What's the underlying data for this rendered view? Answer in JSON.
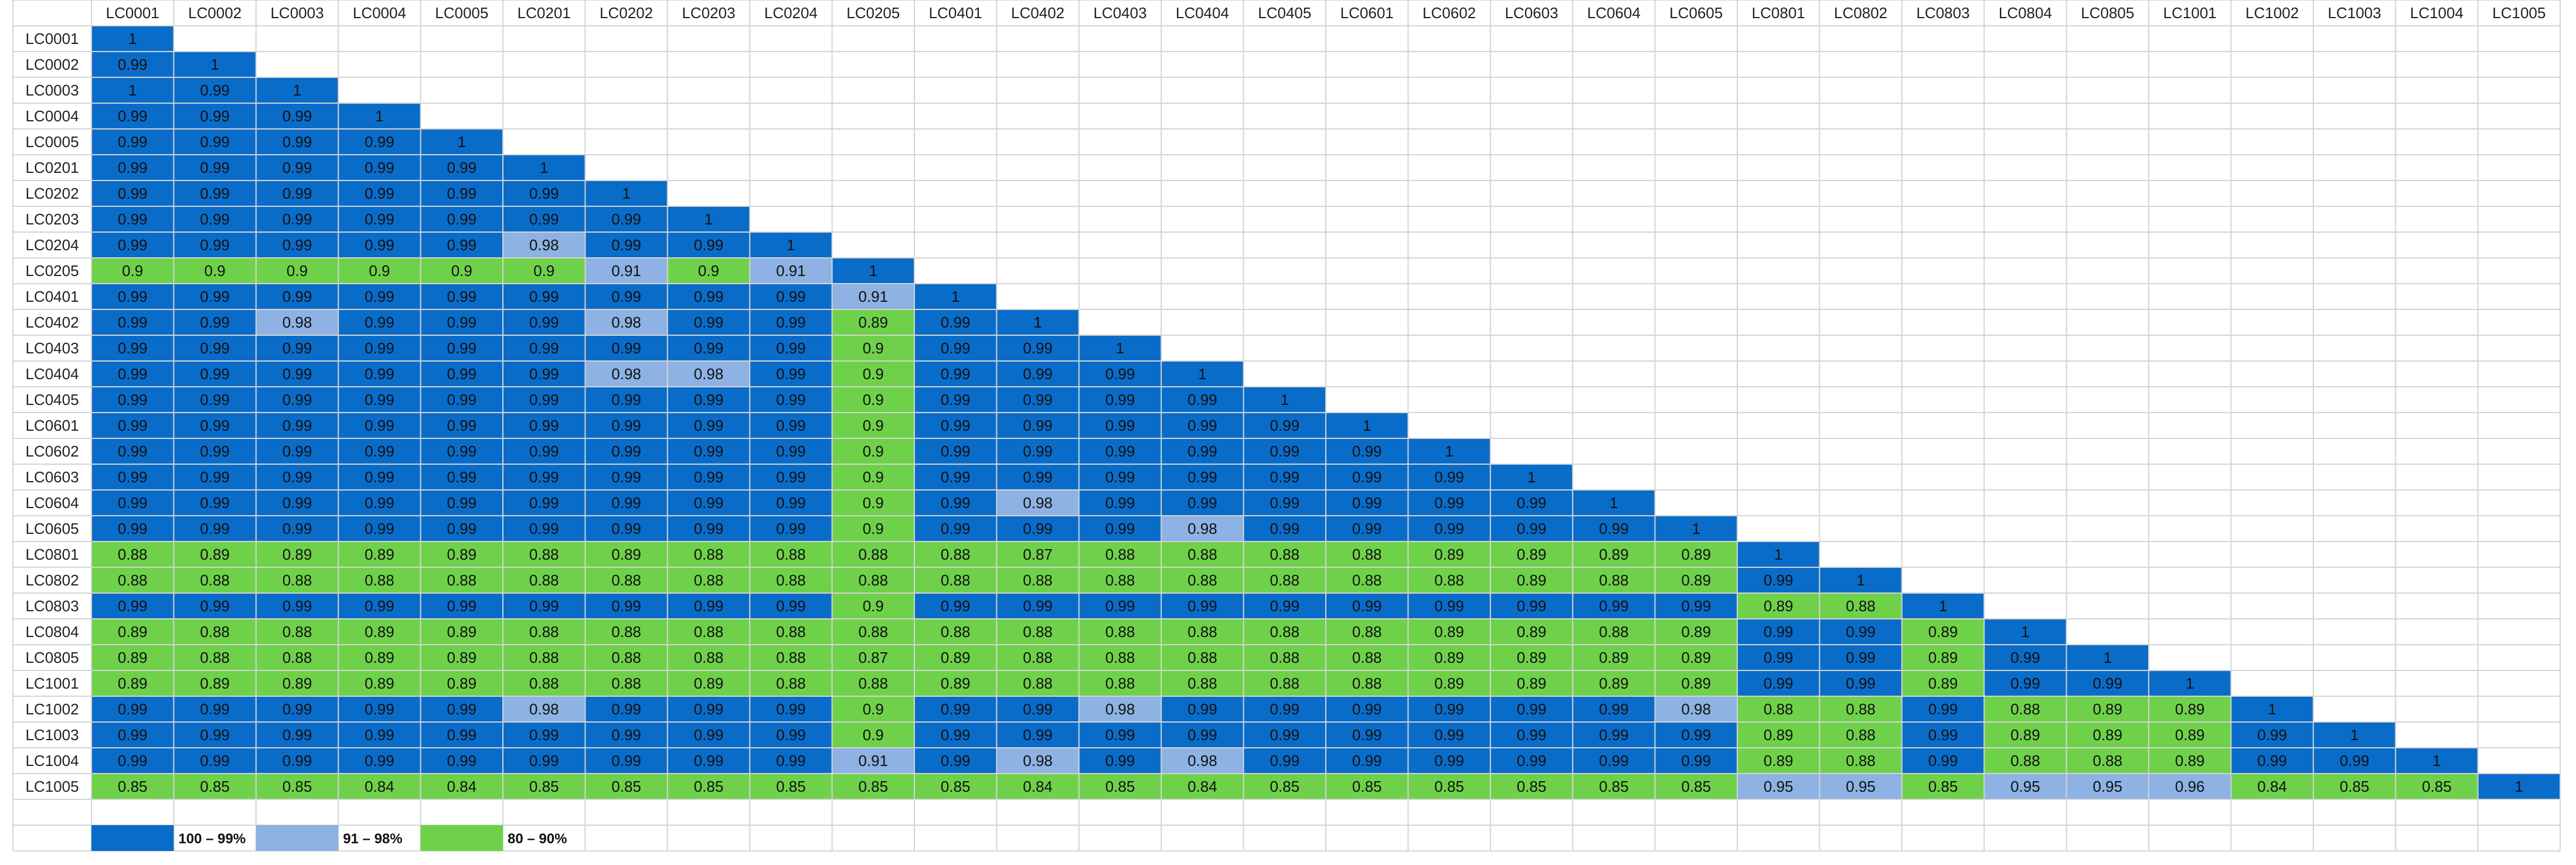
{
  "chart_data": {
    "type": "heatmap",
    "title": "",
    "labels": [
      "LC0001",
      "LC0002",
      "LC0003",
      "LC0004",
      "LC0005",
      "LC0201",
      "LC0202",
      "LC0203",
      "LC0204",
      "LC0205",
      "LC0401",
      "LC0402",
      "LC0403",
      "LC0404",
      "LC0405",
      "LC0601",
      "LC0602",
      "LC0603",
      "LC0604",
      "LC0605",
      "LC0801",
      "LC0802",
      "LC0803",
      "LC0804",
      "LC0805",
      "LC1001",
      "LC1002",
      "LC1003",
      "LC1004",
      "LC1005"
    ],
    "matrix": [
      [
        "1"
      ],
      [
        "0.99",
        "1"
      ],
      [
        "1",
        "0.99",
        "1"
      ],
      [
        "0.99",
        "0.99",
        "0.99",
        "1"
      ],
      [
        "0.99",
        "0.99",
        "0.99",
        "0.99",
        "1"
      ],
      [
        "0.99",
        "0.99",
        "0.99",
        "0.99",
        "0.99",
        "1"
      ],
      [
        "0.99",
        "0.99",
        "0.99",
        "0.99",
        "0.99",
        "0.99",
        "1"
      ],
      [
        "0.99",
        "0.99",
        "0.99",
        "0.99",
        "0.99",
        "0.99",
        "0.99",
        "1"
      ],
      [
        "0.99",
        "0.99",
        "0.99",
        "0.99",
        "0.99",
        "0.98",
        "0.99",
        "0.99",
        "1"
      ],
      [
        "0.9",
        "0.9",
        "0.9",
        "0.9",
        "0.9",
        "0.9",
        "0.91",
        "0.9",
        "0.91",
        "1"
      ],
      [
        "0.99",
        "0.99",
        "0.99",
        "0.99",
        "0.99",
        "0.99",
        "0.99",
        "0.99",
        "0.99",
        "0.91",
        "1"
      ],
      [
        "0.99",
        "0.99",
        "0.98",
        "0.99",
        "0.99",
        "0.99",
        "0.98",
        "0.99",
        "0.99",
        "0.89",
        "0.99",
        "1"
      ],
      [
        "0.99",
        "0.99",
        "0.99",
        "0.99",
        "0.99",
        "0.99",
        "0.99",
        "0.99",
        "0.99",
        "0.9",
        "0.99",
        "0.99",
        "1"
      ],
      [
        "0.99",
        "0.99",
        "0.99",
        "0.99",
        "0.99",
        "0.99",
        "0.98",
        "0.98",
        "0.99",
        "0.9",
        "0.99",
        "0.99",
        "0.99",
        "1"
      ],
      [
        "0.99",
        "0.99",
        "0.99",
        "0.99",
        "0.99",
        "0.99",
        "0.99",
        "0.99",
        "0.99",
        "0.9",
        "0.99",
        "0.99",
        "0.99",
        "0.99",
        "1"
      ],
      [
        "0.99",
        "0.99",
        "0.99",
        "0.99",
        "0.99",
        "0.99",
        "0.99",
        "0.99",
        "0.99",
        "0.9",
        "0.99",
        "0.99",
        "0.99",
        "0.99",
        "0.99",
        "1"
      ],
      [
        "0.99",
        "0.99",
        "0.99",
        "0.99",
        "0.99",
        "0.99",
        "0.99",
        "0.99",
        "0.99",
        "0.9",
        "0.99",
        "0.99",
        "0.99",
        "0.99",
        "0.99",
        "0.99",
        "1"
      ],
      [
        "0.99",
        "0.99",
        "0.99",
        "0.99",
        "0.99",
        "0.99",
        "0.99",
        "0.99",
        "0.99",
        "0.9",
        "0.99",
        "0.99",
        "0.99",
        "0.99",
        "0.99",
        "0.99",
        "0.99",
        "1"
      ],
      [
        "0.99",
        "0.99",
        "0.99",
        "0.99",
        "0.99",
        "0.99",
        "0.99",
        "0.99",
        "0.99",
        "0.9",
        "0.99",
        "0.98",
        "0.99",
        "0.99",
        "0.99",
        "0.99",
        "0.99",
        "0.99",
        "1"
      ],
      [
        "0.99",
        "0.99",
        "0.99",
        "0.99",
        "0.99",
        "0.99",
        "0.99",
        "0.99",
        "0.99",
        "0.9",
        "0.99",
        "0.99",
        "0.99",
        "0.98",
        "0.99",
        "0.99",
        "0.99",
        "0.99",
        "0.99",
        "1"
      ],
      [
        "0.88",
        "0.89",
        "0.89",
        "0.89",
        "0.89",
        "0.88",
        "0.89",
        "0.88",
        "0.88",
        "0.88",
        "0.88",
        "0.87",
        "0.88",
        "0.88",
        "0.88",
        "0.88",
        "0.89",
        "0.89",
        "0.89",
        "0.89",
        "1"
      ],
      [
        "0.88",
        "0.88",
        "0.88",
        "0.88",
        "0.88",
        "0.88",
        "0.88",
        "0.88",
        "0.88",
        "0.88",
        "0.88",
        "0.88",
        "0.88",
        "0.88",
        "0.88",
        "0.88",
        "0.88",
        "0.89",
        "0.88",
        "0.89",
        "0.99",
        "1"
      ],
      [
        "0.99",
        "0.99",
        "0.99",
        "0.99",
        "0.99",
        "0.99",
        "0.99",
        "0.99",
        "0.99",
        "0.9",
        "0.99",
        "0.99",
        "0.99",
        "0.99",
        "0.99",
        "0.99",
        "0.99",
        "0.99",
        "0.99",
        "0.99",
        "0.89",
        "0.88",
        "1"
      ],
      [
        "0.89",
        "0.88",
        "0.88",
        "0.89",
        "0.89",
        "0.88",
        "0.88",
        "0.88",
        "0.88",
        "0.88",
        "0.88",
        "0.88",
        "0.88",
        "0.88",
        "0.88",
        "0.88",
        "0.89",
        "0.89",
        "0.88",
        "0.89",
        "0.99",
        "0.99",
        "0.89",
        "1"
      ],
      [
        "0.89",
        "0.88",
        "0.88",
        "0.89",
        "0.89",
        "0.88",
        "0.88",
        "0.88",
        "0.88",
        "0.87",
        "0.89",
        "0.88",
        "0.88",
        "0.88",
        "0.88",
        "0.88",
        "0.89",
        "0.89",
        "0.89",
        "0.89",
        "0.99",
        "0.99",
        "0.89",
        "0.99",
        "1"
      ],
      [
        "0.89",
        "0.89",
        "0.89",
        "0.89",
        "0.89",
        "0.88",
        "0.88",
        "0.89",
        "0.88",
        "0.88",
        "0.89",
        "0.88",
        "0.88",
        "0.88",
        "0.88",
        "0.88",
        "0.89",
        "0.89",
        "0.89",
        "0.89",
        "0.99",
        "0.99",
        "0.89",
        "0.99",
        "0.99",
        "1"
      ],
      [
        "0.99",
        "0.99",
        "0.99",
        "0.99",
        "0.99",
        "0.98",
        "0.99",
        "0.99",
        "0.99",
        "0.9",
        "0.99",
        "0.99",
        "0.98",
        "0.99",
        "0.99",
        "0.99",
        "0.99",
        "0.99",
        "0.99",
        "0.98",
        "0.88",
        "0.88",
        "0.99",
        "0.88",
        "0.89",
        "0.89",
        "1"
      ],
      [
        "0.99",
        "0.99",
        "0.99",
        "0.99",
        "0.99",
        "0.99",
        "0.99",
        "0.99",
        "0.99",
        "0.9",
        "0.99",
        "0.99",
        "0.99",
        "0.99",
        "0.99",
        "0.99",
        "0.99",
        "0.99",
        "0.99",
        "0.99",
        "0.89",
        "0.88",
        "0.99",
        "0.89",
        "0.89",
        "0.89",
        "0.99",
        "1"
      ],
      [
        "0.99",
        "0.99",
        "0.99",
        "0.99",
        "0.99",
        "0.99",
        "0.99",
        "0.99",
        "0.99",
        "0.91",
        "0.99",
        "0.98",
        "0.99",
        "0.98",
        "0.99",
        "0.99",
        "0.99",
        "0.99",
        "0.99",
        "0.99",
        "0.89",
        "0.88",
        "0.99",
        "0.88",
        "0.88",
        "0.89",
        "0.99",
        "0.99",
        "1"
      ],
      [
        "0.85",
        "0.85",
        "0.85",
        "0.84",
        "0.84",
        "0.85",
        "0.85",
        "0.85",
        "0.85",
        "0.85",
        "0.85",
        "0.84",
        "0.85",
        "0.84",
        "0.85",
        "0.85",
        "0.85",
        "0.85",
        "0.85",
        "0.85",
        "0.95",
        "0.95",
        "0.85",
        "0.95",
        "0.95",
        "0.96",
        "0.84",
        "0.85",
        "0.85",
        "1"
      ]
    ],
    "legend": [
      {
        "label": "100 – 99%",
        "color": "#0a6cc9"
      },
      {
        "label": "91 – 98%",
        "color": "#8db2e3"
      },
      {
        "label": "80 – 90%",
        "color": "#6fd14a"
      }
    ],
    "colors": {
      "high": "#0a6cc9",
      "mid": "#8db2e3",
      "low": "#6fd14a",
      "grid": "#d4d4d4",
      "background": "#ffffff"
    },
    "legend_placement": "bottom-left",
    "grid": true
  }
}
